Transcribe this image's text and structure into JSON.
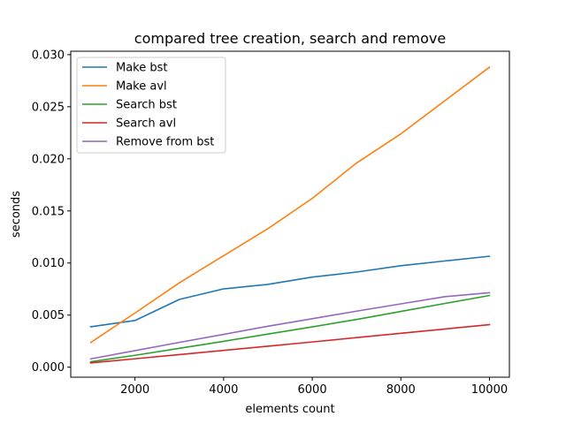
{
  "chart_data": {
    "type": "line",
    "title": "compared tree creation, search and remove",
    "xlabel": "elements count",
    "ylabel": "seconds",
    "xlim": [
      550,
      10450
    ],
    "ylim": [
      -0.00096,
      0.03033
    ],
    "xticks": [
      2000,
      4000,
      6000,
      8000,
      10000
    ],
    "xtick_labels": [
      "2000",
      "4000",
      "6000",
      "8000",
      "10000"
    ],
    "yticks": [
      0.0,
      0.005,
      0.01,
      0.015,
      0.02,
      0.025,
      0.03
    ],
    "ytick_labels": [
      "0.000",
      "0.005",
      "0.010",
      "0.015",
      "0.020",
      "0.025",
      "0.030"
    ],
    "grid": false,
    "legend_position": "top-left",
    "x": [
      1000,
      2000,
      3000,
      4000,
      5000,
      6000,
      7000,
      8000,
      9000,
      10000
    ],
    "series": [
      {
        "name": "Make bst",
        "color": "#1f77b4",
        "values": [
          0.00388,
          0.00448,
          0.0065,
          0.00752,
          0.00795,
          0.00865,
          0.00913,
          0.00974,
          0.0102,
          0.01065
        ]
      },
      {
        "name": "Make avl",
        "color": "#ff7f0e",
        "values": [
          0.00237,
          0.0052,
          0.0081,
          0.0107,
          0.0133,
          0.0162,
          0.0196,
          0.0224,
          0.0256,
          0.0288
        ]
      },
      {
        "name": "Search bst",
        "color": "#2ca02c",
        "values": [
          0.00052,
          0.00114,
          0.00181,
          0.00248,
          0.00318,
          0.00387,
          0.00458,
          0.00535,
          0.00612,
          0.00688
        ]
      },
      {
        "name": "Search avl",
        "color": "#d62728",
        "values": [
          0.00041,
          0.00081,
          0.00121,
          0.00161,
          0.00201,
          0.00242,
          0.00284,
          0.00325,
          0.00367,
          0.00408
        ]
      },
      {
        "name": "Remove from bst",
        "color": "#9467bd",
        "values": [
          0.0008,
          0.00159,
          0.00238,
          0.00315,
          0.00393,
          0.00465,
          0.00538,
          0.00608,
          0.00677,
          0.00715
        ]
      }
    ]
  }
}
